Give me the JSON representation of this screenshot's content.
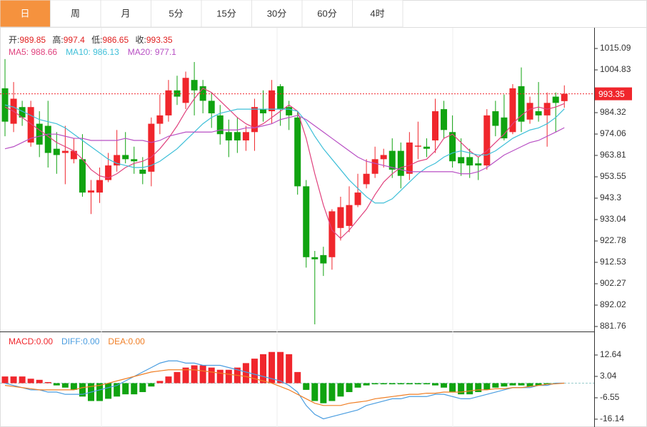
{
  "tabs": [
    "日",
    "周",
    "月",
    "5分",
    "15分",
    "30分",
    "60分",
    "4时"
  ],
  "active_tab": 0,
  "chart_data": [
    {
      "type": "candlestick",
      "up_color": "#f0262c",
      "down_color": "#10a310",
      "info": {
        "labels": [
          "开:",
          "高:",
          "低:",
          "收:"
        ]
      },
      "open": [
        996,
        979,
        987,
        970,
        979,
        978,
        967,
        965,
        962,
        962,
        946,
        946,
        952,
        959,
        964,
        962,
        957,
        956,
        979,
        983,
        995,
        989,
        1000,
        997,
        990,
        983,
        975,
        975,
        971,
        975,
        986,
        985,
        997,
        987,
        982,
        949,
        915,
        916,
        915,
        929,
        930,
        940,
        950,
        955,
        962,
        966,
        966,
        955,
        968,
        968,
        971,
        986,
        975,
        963,
        963,
        960,
        959,
        985,
        982,
        975,
        997,
        981,
        985,
        983,
        992,
        989.85
      ],
      "high": [
        1010,
        999,
        990,
        990,
        985,
        990,
        975,
        978,
        972,
        974,
        952,
        958,
        965,
        976,
        975,
        968,
        963,
        982,
        993,
        1000,
        1002,
        1004,
        1008.6,
        1000,
        994,
        988,
        981,
        982,
        978,
        991,
        995,
        1000,
        998,
        990,
        985,
        952,
        918,
        920,
        938,
        944,
        949,
        955,
        962,
        968,
        967,
        972,
        970,
        975,
        980,
        972,
        991,
        990,
        983,
        972,
        967,
        963,
        986,
        990,
        993,
        998,
        1006,
        992,
        999,
        994,
        994,
        997.4
      ],
      "low": [
        973,
        975,
        978,
        968,
        963,
        958,
        955,
        950,
        960,
        944,
        935.7,
        941,
        951,
        956,
        960,
        955,
        950,
        949,
        974,
        980,
        988,
        986,
        983,
        984,
        977,
        969,
        963,
        965,
        966,
        966,
        980,
        979,
        978,
        976,
        945,
        910,
        882.8,
        906,
        909,
        923,
        927,
        939,
        948,
        953,
        958,
        953,
        948,
        952,
        962,
        963,
        965,
        972,
        958,
        954,
        953,
        952,
        957,
        973,
        971,
        974,
        975,
        979,
        980,
        968,
        975,
        986.65
      ],
      "close": [
        980,
        991,
        982,
        987,
        969,
        965,
        964,
        966,
        966,
        946,
        947,
        952,
        959,
        964,
        962,
        961,
        955,
        979,
        983,
        995,
        992,
        1001,
        995,
        990,
        984,
        974,
        971,
        971,
        975,
        987,
        984,
        995,
        986,
        983,
        949,
        915,
        914,
        912,
        937,
        939,
        940,
        946,
        955,
        962,
        964,
        957,
        954,
        970,
        968.5,
        967,
        985,
        976,
        961,
        960,
        959,
        959,
        983,
        978,
        972,
        996,
        980,
        989,
        983,
        989,
        989,
        993.35
      ],
      "series": [
        {
          "name": "MA5",
          "color": "#e0417d",
          "values": [
            987,
            985,
            982,
            979,
            976,
            973,
            970,
            968,
            966,
            962,
            957,
            954,
            953,
            955,
            958,
            960,
            961,
            963,
            967,
            972,
            978,
            985,
            991,
            996,
            994,
            990,
            986,
            982,
            979,
            977,
            979,
            982,
            985,
            988,
            985,
            972,
            955,
            940,
            928,
            924,
            928,
            933,
            938,
            945,
            951,
            955,
            958,
            959,
            961,
            962,
            966,
            972,
            974,
            970,
            966,
            963,
            966,
            970,
            974,
            979,
            983,
            986,
            987,
            986,
            987,
            988.66
          ]
        },
        {
          "name": "MA10",
          "color": "#3ebfd8",
          "values": [
            988,
            987,
            985,
            983,
            981,
            980,
            979,
            977,
            974,
            971,
            968,
            965,
            962,
            960,
            959,
            958,
            958,
            959,
            961,
            964,
            967,
            971,
            975,
            979,
            982,
            984,
            985,
            986,
            986,
            986,
            986,
            986,
            986,
            986,
            985,
            980,
            973,
            967,
            962,
            957,
            952,
            948,
            944,
            941,
            941,
            943,
            947,
            951,
            955,
            958,
            960,
            963,
            965,
            966,
            965,
            964,
            964,
            966,
            969,
            972,
            974,
            976,
            977,
            979,
            982,
            986.13
          ]
        },
        {
          "name": "MA20",
          "color": "#b84fc4",
          "values": [
            967,
            968,
            970,
            972,
            973,
            974,
            974,
            973,
            972,
            972,
            971,
            971,
            971,
            971,
            972,
            971,
            971,
            970,
            971,
            973,
            974,
            975,
            975,
            975,
            975,
            976,
            976,
            976,
            977,
            977,
            978,
            979,
            981,
            982,
            983,
            981,
            978,
            975,
            972,
            969,
            966,
            963,
            961,
            960,
            959,
            958,
            957,
            956,
            956,
            956,
            956,
            956,
            956,
            955,
            955,
            956,
            958,
            961,
            964,
            966,
            968,
            970,
            971,
            973,
            975,
            977.1
          ]
        }
      ],
      "ylim": [
        879.37,
        1024.67
      ],
      "yticks": [
        1015.09,
        1004.83,
        984.32,
        974.06,
        963.81,
        953.55,
        943.3,
        933.04,
        922.78,
        912.53,
        902.27,
        892.02,
        881.76
      ]
    },
    {
      "type": "macd",
      "series": [
        {
          "name": "MACD",
          "color": "#f0262c",
          "down_color": "#10a310",
          "last_label": "0.00",
          "values": [
            3,
            3,
            3,
            2,
            1.5,
            0.5,
            -1,
            -2,
            -3,
            -6,
            -8,
            -8,
            -7,
            -6,
            -5,
            -5,
            -4,
            -1.5,
            1,
            3,
            5,
            7,
            8,
            8,
            7,
            6,
            6,
            7,
            9,
            11,
            13,
            14,
            14,
            13,
            5,
            -3,
            -8,
            -9,
            -8,
            -6,
            -4,
            -2,
            -1,
            -0.5,
            -0.5,
            -0.5,
            -0.5,
            -0.5,
            -0.5,
            -0.5,
            -1,
            -2,
            -4,
            -5,
            -5,
            -4,
            -3,
            -2,
            -1.5,
            -1,
            -1,
            -1.5,
            -1,
            -0.5,
            -0.3,
            0
          ]
        },
        {
          "name": "DIFF",
          "color": "#4a9de0",
          "last_label": "0.00",
          "values": [
            0,
            -1,
            -2,
            -3,
            -3,
            -4,
            -4,
            -5,
            -5,
            -5,
            -4,
            -3,
            -2,
            -1,
            1,
            3,
            5,
            7,
            9,
            10,
            10,
            9,
            9,
            8,
            8,
            8,
            7,
            6,
            5,
            4,
            3,
            2,
            1,
            -1,
            -4,
            -10,
            -14,
            -16,
            -15,
            -14,
            -13,
            -12,
            -10,
            -9,
            -8,
            -7,
            -7,
            -6,
            -6,
            -6,
            -5,
            -5,
            -6,
            -7,
            -7,
            -6,
            -5,
            -4,
            -3,
            -2,
            -2,
            -2,
            -1,
            -1,
            0,
            0
          ]
        },
        {
          "name": "DEA",
          "color": "#f07e24",
          "last_label": "0.00",
          "values": [
            -1,
            -1.5,
            -2,
            -2.5,
            -3,
            -3,
            -3,
            -3,
            -3,
            -2,
            -1.5,
            -1,
            0,
            1,
            2,
            3,
            4,
            5,
            5.5,
            6,
            6,
            6,
            6,
            5.5,
            5,
            4.5,
            4,
            3.5,
            3,
            2,
            1,
            0,
            -1.5,
            -3,
            -5,
            -7,
            -9,
            -10,
            -10,
            -10,
            -9,
            -8.5,
            -8,
            -7,
            -6.5,
            -6,
            -5.5,
            -5,
            -5,
            -4.5,
            -4.5,
            -4,
            -4,
            -4,
            -3.5,
            -3,
            -3,
            -2.5,
            -2.5,
            -2,
            -2,
            -1.5,
            -1,
            -0.5,
            -0.3,
            0
          ]
        }
      ],
      "ylim": [
        -19.34,
        22.87
      ],
      "yticks": [
        12.64,
        3.04,
        -6.55,
        -16.14
      ]
    }
  ]
}
